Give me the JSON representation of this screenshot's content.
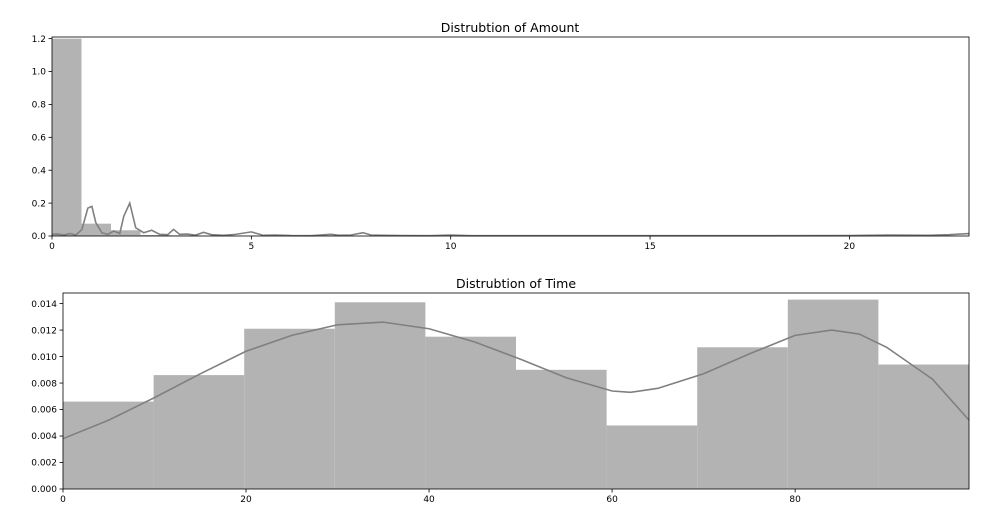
{
  "chart_data": [
    {
      "type": "histogram",
      "title": "Distrubtion of Amount",
      "xlim": [
        0,
        23
      ],
      "ylim": [
        0,
        1.21
      ],
      "xticks": [
        0,
        5,
        10,
        15,
        20
      ],
      "xtick_labels": [
        "0",
        "5",
        "10",
        "15",
        "20"
      ],
      "yticks": [
        0.0,
        0.2,
        0.4,
        0.6,
        0.8,
        1.0,
        1.2
      ],
      "ytick_labels": [
        "0.0",
        "0.2",
        "0.4",
        "0.6",
        "0.8",
        "1.0",
        "1.2"
      ],
      "bars": [
        {
          "x0": 0.0,
          "x1": 0.74,
          "value": 1.2
        },
        {
          "x0": 0.74,
          "x1": 1.48,
          "value": 0.075
        },
        {
          "x0": 1.48,
          "x1": 2.22,
          "value": 0.035
        },
        {
          "x0": 2.22,
          "x1": 2.96,
          "value": 0.006
        },
        {
          "x0": 2.96,
          "x1": 3.7,
          "value": 0.004
        },
        {
          "x0": 3.7,
          "x1": 4.44,
          "value": 0.002
        },
        {
          "x0": 4.44,
          "x1": 5.18,
          "value": 0.002
        },
        {
          "x0": 5.18,
          "x1": 5.92,
          "value": 0.001
        }
      ],
      "kde": {
        "x": [
          0,
          0.15,
          0.3,
          0.45,
          0.6,
          0.75,
          0.9,
          1.0,
          1.1,
          1.25,
          1.4,
          1.55,
          1.7,
          1.8,
          1.95,
          2.1,
          2.3,
          2.5,
          2.7,
          2.9,
          3.05,
          3.2,
          3.4,
          3.6,
          3.8,
          4.0,
          4.3,
          4.6,
          5.0,
          5.3,
          5.6,
          6.0,
          6.5,
          7.0,
          7.2,
          7.5,
          7.8,
          8.0,
          8.3,
          8.8,
          9.5,
          10.0,
          10.5,
          12,
          14,
          16,
          18,
          20,
          21,
          22,
          22.5,
          23
        ],
        "y": [
          0.01,
          0.012,
          0.006,
          0.015,
          0.006,
          0.04,
          0.17,
          0.18,
          0.08,
          0.02,
          0.01,
          0.03,
          0.015,
          0.12,
          0.2,
          0.05,
          0.02,
          0.035,
          0.01,
          0.008,
          0.04,
          0.01,
          0.012,
          0.005,
          0.022,
          0.008,
          0.004,
          0.01,
          0.025,
          0.004,
          0.006,
          0.003,
          0.002,
          0.01,
          0.004,
          0.006,
          0.02,
          0.006,
          0.004,
          0.003,
          0.002,
          0.006,
          0.002,
          0.002,
          0.002,
          0.002,
          0.002,
          0.003,
          0.006,
          0.004,
          0.008,
          0.015
        ]
      }
    },
    {
      "type": "histogram",
      "title": "Distrubtion of Time",
      "xlim": [
        0,
        99
      ],
      "ylim": [
        0,
        0.0148
      ],
      "xticks": [
        0,
        20,
        40,
        60,
        80
      ],
      "xtick_labels": [
        "0",
        "20",
        "40",
        "60",
        "80"
      ],
      "yticks": [
        0.0,
        0.002,
        0.004,
        0.006,
        0.008,
        0.01,
        0.012,
        0.014
      ],
      "ytick_labels": [
        "0.000",
        "0.002",
        "0.004",
        "0.006",
        "0.008",
        "0.010",
        "0.012",
        "0.014"
      ],
      "bars": [
        {
          "x0": 0,
          "x1": 9.9,
          "value": 0.0066
        },
        {
          "x0": 9.9,
          "x1": 19.8,
          "value": 0.0086
        },
        {
          "x0": 19.8,
          "x1": 29.7,
          "value": 0.0121
        },
        {
          "x0": 29.7,
          "x1": 39.6,
          "value": 0.0141
        },
        {
          "x0": 39.6,
          "x1": 49.5,
          "value": 0.0115
        },
        {
          "x0": 49.5,
          "x1": 59.4,
          "value": 0.009
        },
        {
          "x0": 59.4,
          "x1": 69.3,
          "value": 0.0048
        },
        {
          "x0": 69.3,
          "x1": 79.2,
          "value": 0.0107
        },
        {
          "x0": 79.2,
          "x1": 89.1,
          "value": 0.0143
        },
        {
          "x0": 89.1,
          "x1": 99,
          "value": 0.0094
        }
      ],
      "kde": {
        "x": [
          0,
          5,
          10,
          15,
          20,
          25,
          30,
          35,
          40,
          45,
          50,
          55,
          60,
          62,
          65,
          70,
          75,
          80,
          84,
          87,
          90,
          95,
          99
        ],
        "y": [
          0.0038,
          0.0052,
          0.0069,
          0.0087,
          0.0104,
          0.0116,
          0.0124,
          0.0126,
          0.0121,
          0.0111,
          0.0098,
          0.0084,
          0.0074,
          0.0073,
          0.0076,
          0.0087,
          0.0102,
          0.0116,
          0.012,
          0.0117,
          0.0107,
          0.0083,
          0.0052
        ]
      }
    }
  ]
}
